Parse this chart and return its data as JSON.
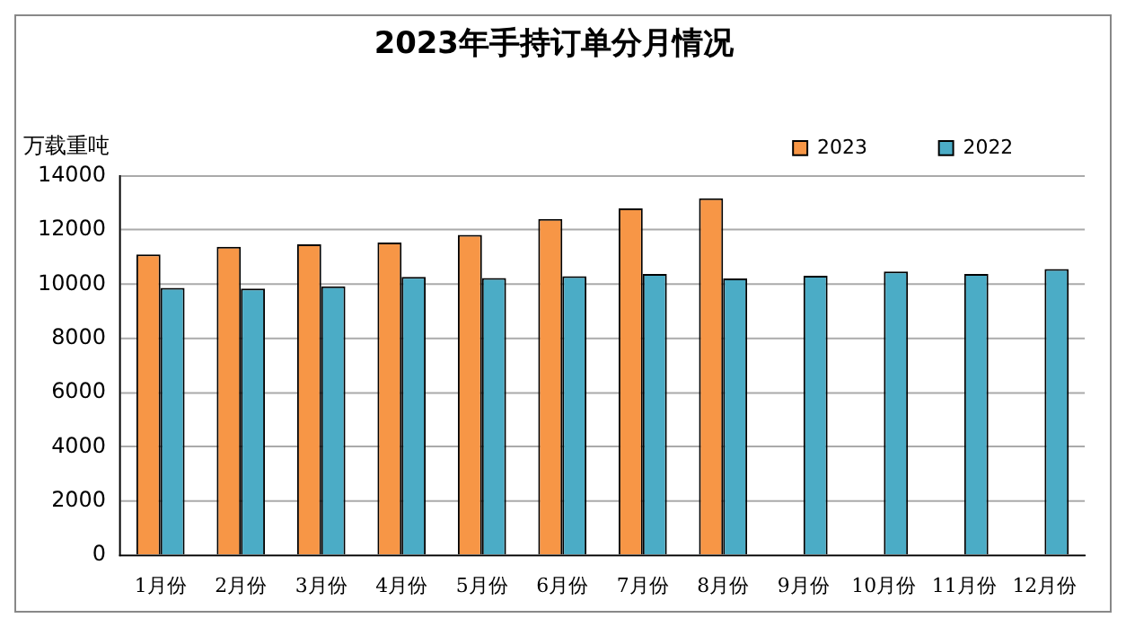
{
  "chart_data": {
    "type": "bar",
    "title": "2023年手持订单分月情况",
    "ylabel": "万载重吨",
    "categories": [
      "1月份",
      "2月份",
      "3月份",
      "4月份",
      "5月份",
      "6月份",
      "7月份",
      "8月份",
      "9月份",
      "10月份",
      "11月份",
      "12月份"
    ],
    "series": [
      {
        "name": "2023",
        "color": "#f79646",
        "values": [
          11100,
          11380,
          11470,
          11540,
          11820,
          12410,
          12800,
          13170,
          null,
          null,
          null,
          null
        ]
      },
      {
        "name": "2022",
        "color": "#4bacc6",
        "values": [
          9860,
          9840,
          9920,
          10270,
          10230,
          10290,
          10380,
          10210,
          10310,
          10470,
          10380,
          10560
        ]
      }
    ],
    "ylim": [
      0,
      14000
    ],
    "yticks": [
      0,
      2000,
      4000,
      6000,
      8000,
      10000,
      12000,
      14000
    ],
    "grid": "y",
    "legend": "top"
  }
}
